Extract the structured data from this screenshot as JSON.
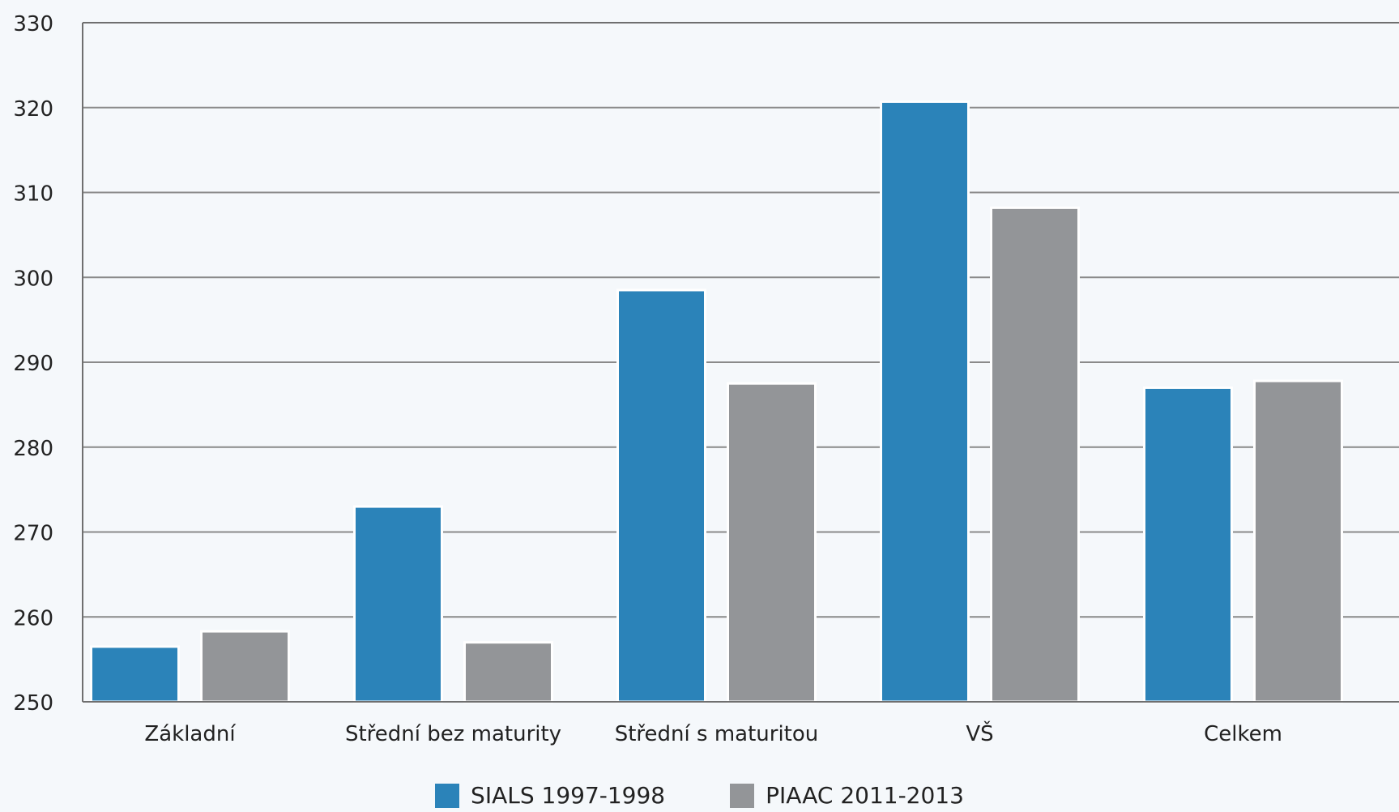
{
  "chart_data": {
    "type": "bar",
    "title": "",
    "xlabel": "",
    "ylabel": "",
    "categories": [
      "Základní",
      "Střední bez maturity",
      "Střední s maturitou",
      "VŠ",
      "Celkem"
    ],
    "series": [
      {
        "name": "SIALS 1997-1998",
        "color": "#2b83b9",
        "values": [
          256.5,
          273,
          298.5,
          320.7,
          287
        ]
      },
      {
        "name": "PIAAC 2011-2013",
        "color": "#939598",
        "values": [
          258.3,
          257,
          287.5,
          308.2,
          287.8
        ]
      }
    ],
    "ylim": [
      250,
      330
    ],
    "yticks": [
      250,
      260,
      270,
      280,
      290,
      300,
      310,
      320,
      330
    ],
    "grid": true,
    "legend_position": "bottom"
  }
}
